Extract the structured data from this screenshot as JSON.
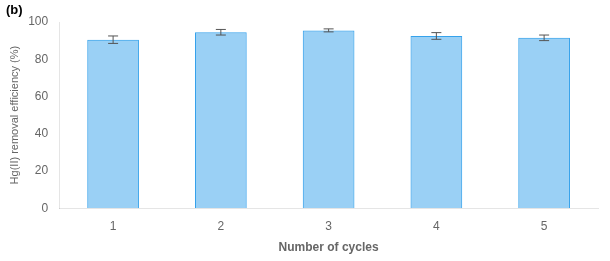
{
  "chart_data": {
    "type": "bar",
    "annotations": [
      "(b)"
    ],
    "xlabel": "Number of cycles",
    "ylabel": "Hg(II) removal efficiency (%)",
    "categories": [
      "1",
      "2",
      "3",
      "4",
      "5"
    ],
    "values": [
      90.5,
      94.5,
      95.5,
      92.5,
      91.5
    ],
    "errors": [
      2.0,
      1.5,
      0.8,
      1.8,
      1.5
    ],
    "ylim": [
      0,
      100
    ],
    "yticks": [
      0,
      20,
      40,
      60,
      80,
      100
    ],
    "grid": false
  }
}
